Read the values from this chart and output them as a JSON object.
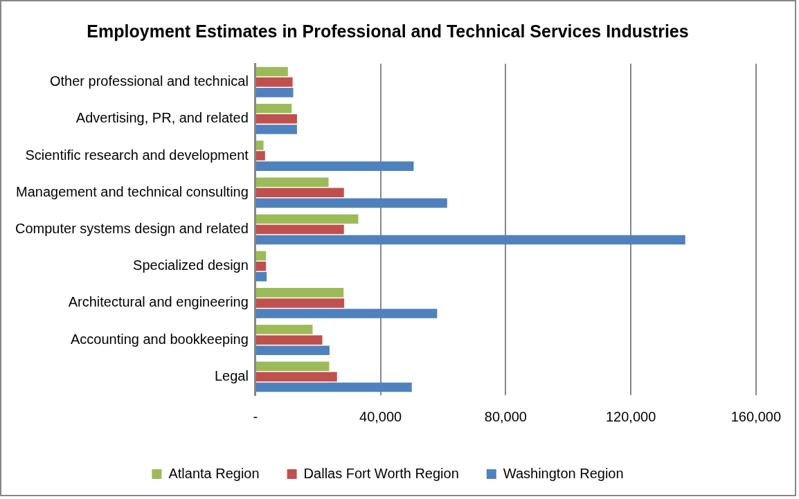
{
  "chart_data": {
    "type": "bar",
    "orientation": "horizontal",
    "title": "Employment Estimates in Professional and Technical Services Industries",
    "categories": [
      "Other professional and technical",
      "Advertising, PR, and related",
      "Scientific research and development",
      "Management and technical consulting",
      "Computer systems design and related",
      "Specialized design",
      "Architectural and engineering",
      "Accounting and bookkeeping",
      "Legal"
    ],
    "series": [
      {
        "name": "Atlanta Region",
        "color": "#9bbb59",
        "values": [
          10400,
          11600,
          2600,
          23400,
          32900,
          3400,
          28200,
          18300,
          23600
        ]
      },
      {
        "name": "Dallas Fort Worth Region",
        "color": "#c0504d",
        "values": [
          11900,
          13300,
          3100,
          28300,
          28300,
          3400,
          28400,
          21400,
          26100
        ]
      },
      {
        "name": "Washington Region",
        "color": "#4f81bd",
        "values": [
          12100,
          13300,
          50600,
          61300,
          137400,
          3600,
          58100,
          23700,
          50000
        ]
      }
    ],
    "xlim": [
      0,
      160000
    ],
    "xticks": [
      {
        "value": 0,
        "label": "-"
      },
      {
        "value": 40000,
        "label": "40,000"
      },
      {
        "value": 80000,
        "label": "80,000"
      },
      {
        "value": 120000,
        "label": "120,000"
      },
      {
        "value": 160000,
        "label": "160,000"
      }
    ],
    "grid": "x",
    "legend": "bottom"
  }
}
